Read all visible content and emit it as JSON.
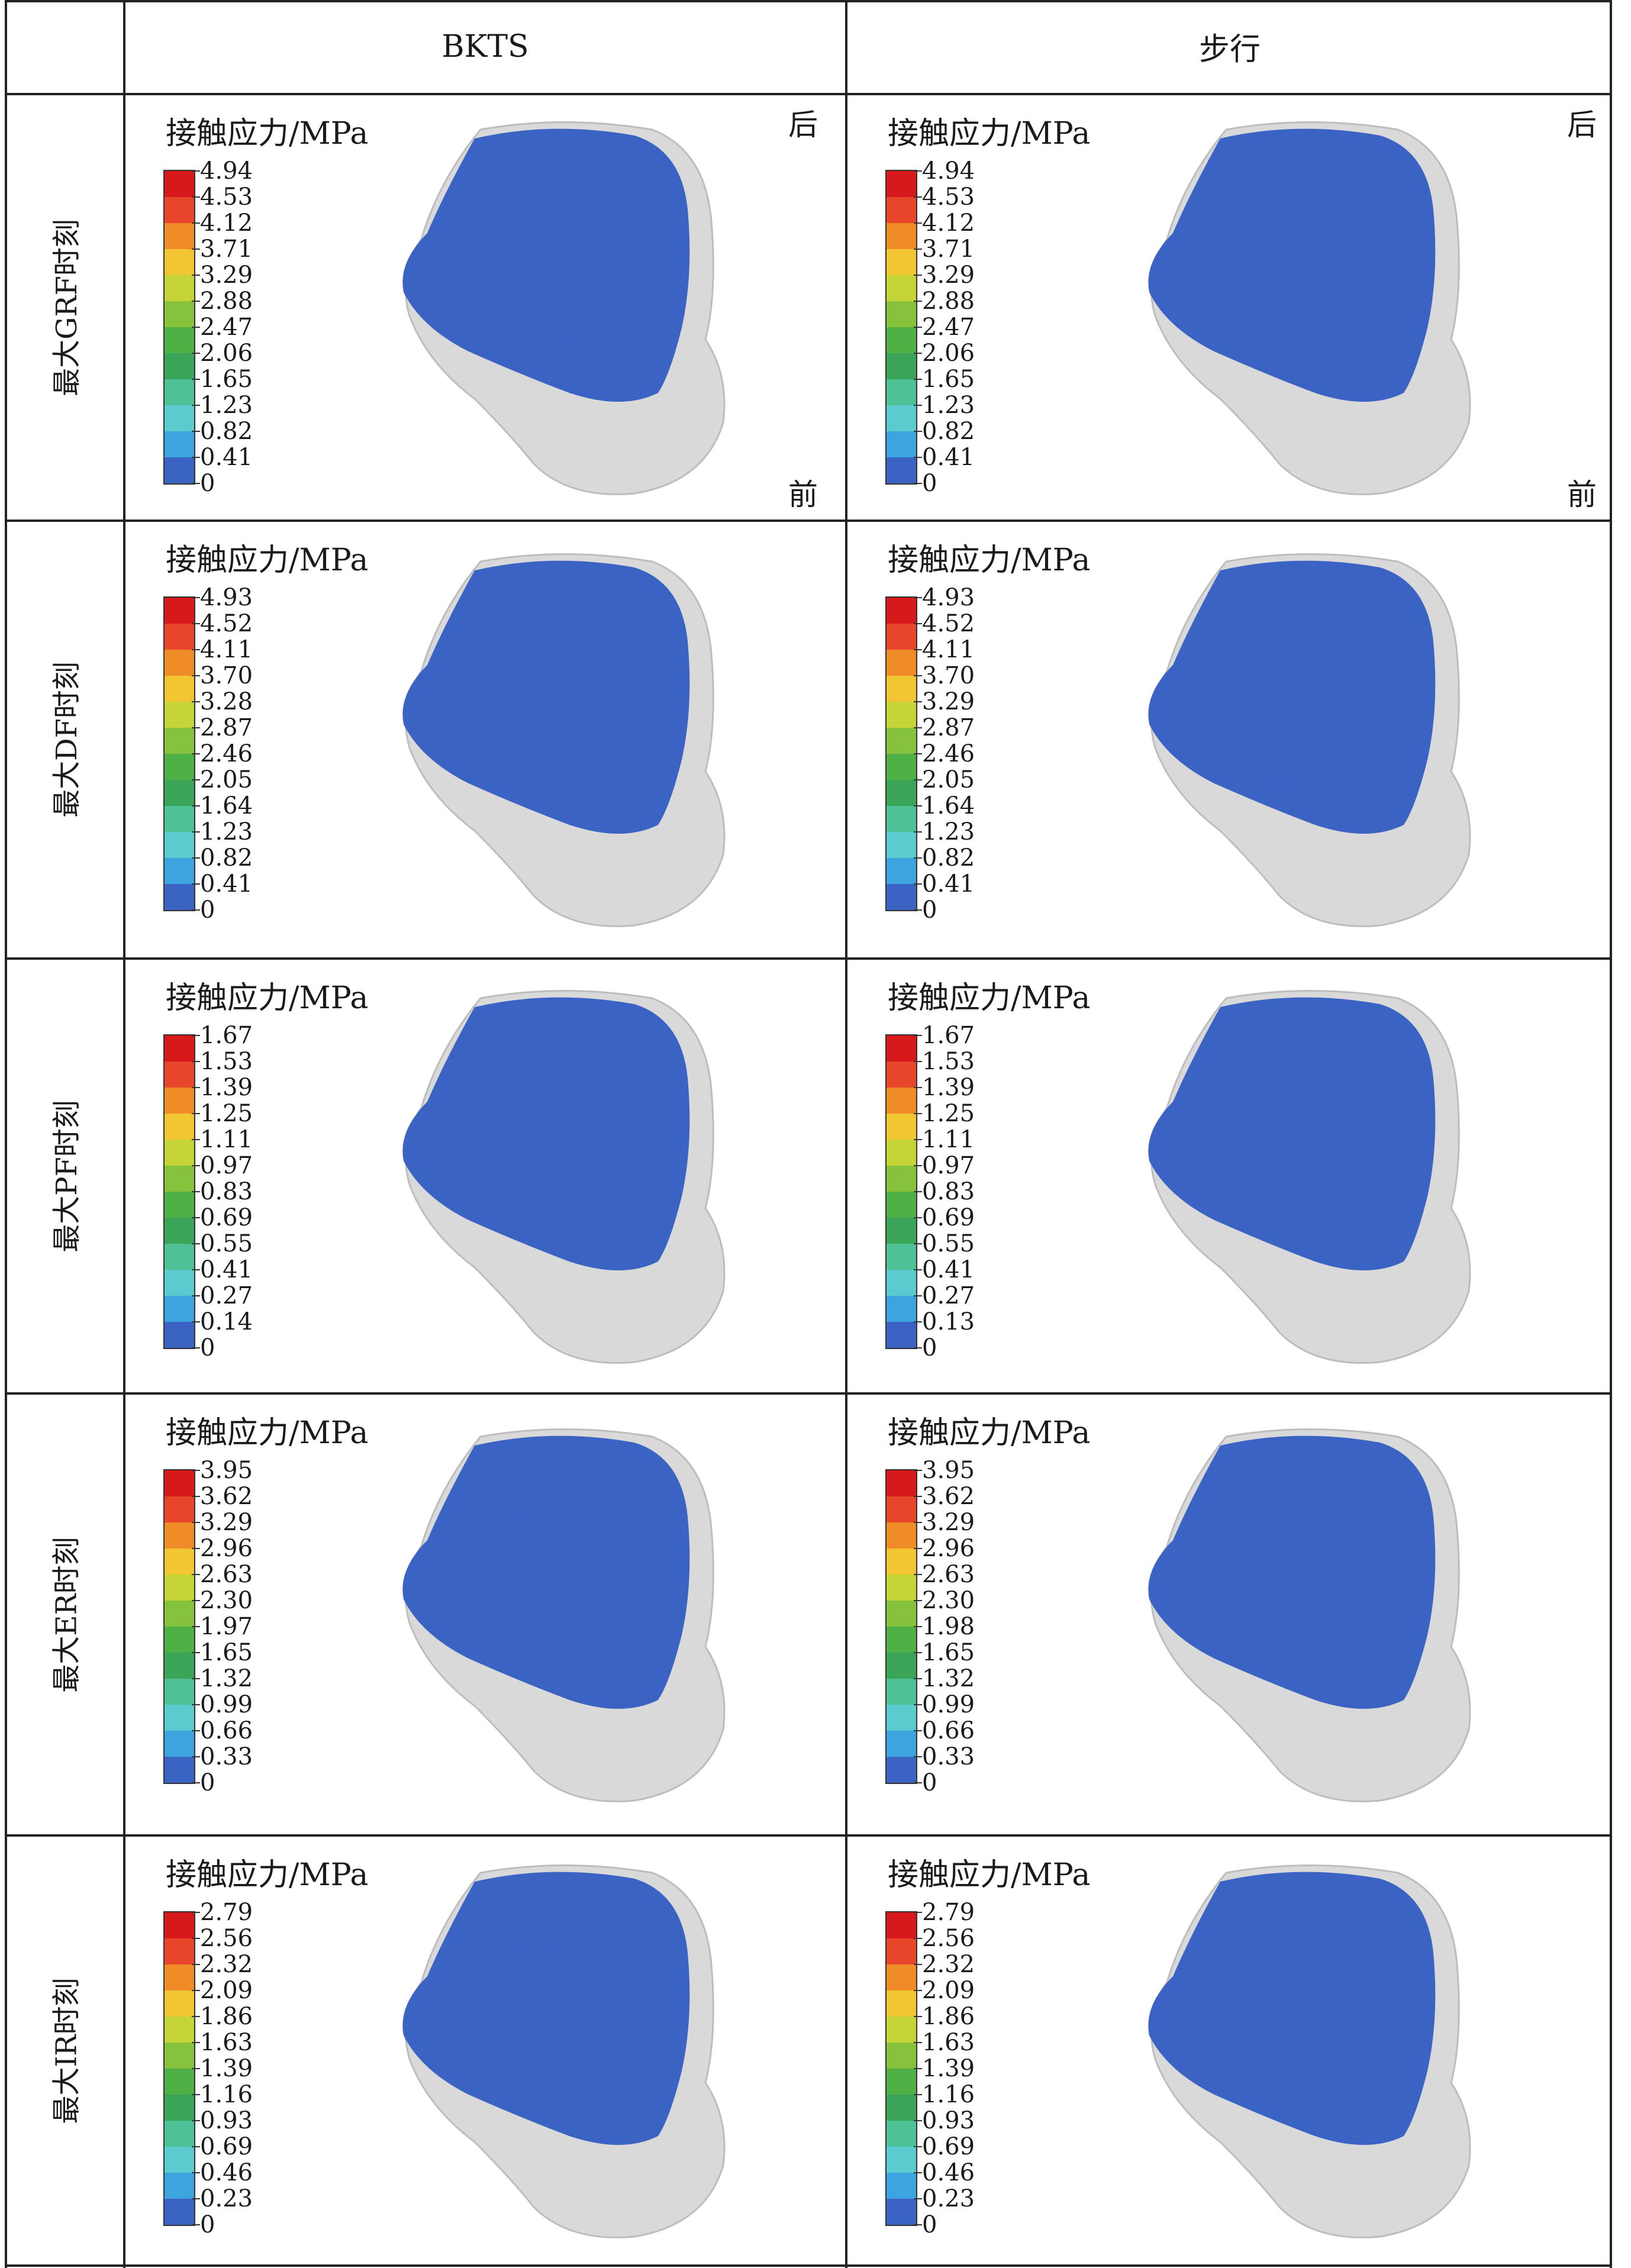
{
  "table": {
    "columns": [
      "BKTS",
      "步行"
    ],
    "rows": [
      {
        "label": "最大GRF时刻",
        "bkts": {
          "title": "接触应力/MPa",
          "ticks": [
            "4.94",
            "4.53",
            "4.12",
            "3.71",
            "3.29",
            "2.88",
            "2.47",
            "2.06",
            "1.65",
            "1.23",
            "0.82",
            "0.41",
            "0"
          ],
          "back": "后",
          "front": "前"
        },
        "walk": {
          "title": "接触应力/MPa",
          "ticks": [
            "4.94",
            "4.53",
            "4.12",
            "3.71",
            "3.29",
            "2.88",
            "2.47",
            "2.06",
            "1.65",
            "1.23",
            "0.82",
            "0.41",
            "0"
          ],
          "back": "后",
          "front": "前"
        }
      },
      {
        "label": "最大DF时刻",
        "bkts": {
          "title": "接触应力/MPa",
          "ticks": [
            "4.93",
            "4.52",
            "4.11",
            "3.70",
            "3.28",
            "2.87",
            "2.46",
            "2.05",
            "1.64",
            "1.23",
            "0.82",
            "0.41",
            "0"
          ]
        },
        "walk": {
          "title": "接触应力/MPa",
          "ticks": [
            "4.93",
            "4.52",
            "4.11",
            "3.70",
            "3.29",
            "2.87",
            "2.46",
            "2.05",
            "1.64",
            "1.23",
            "0.82",
            "0.41",
            "0"
          ]
        }
      },
      {
        "label": "最大PF时刻",
        "bkts": {
          "title": "接触应力/MPa",
          "ticks": [
            "1.67",
            "1.53",
            "1.39",
            "1.25",
            "1.11",
            "0.97",
            "0.83",
            "0.69",
            "0.55",
            "0.41",
            "0.27",
            "0.14",
            "0"
          ]
        },
        "walk": {
          "title": "接触应力/MPa",
          "ticks": [
            "1.67",
            "1.53",
            "1.39",
            "1.25",
            "1.11",
            "0.97",
            "0.83",
            "0.69",
            "0.55",
            "0.41",
            "0.27",
            "0.13",
            "0"
          ]
        }
      },
      {
        "label": "最大ER时刻",
        "bkts": {
          "title": "接触应力/MPa",
          "ticks": [
            "3.95",
            "3.62",
            "3.29",
            "2.96",
            "2.63",
            "2.30",
            "1.97",
            "1.65",
            "1.32",
            "0.99",
            "0.66",
            "0.33",
            "0"
          ]
        },
        "walk": {
          "title": "接触应力/MPa",
          "ticks": [
            "3.95",
            "3.62",
            "3.29",
            "2.96",
            "2.63",
            "2.30",
            "1.98",
            "1.65",
            "1.32",
            "0.99",
            "0.66",
            "0.33",
            "0"
          ]
        }
      },
      {
        "label": "最大IR时刻",
        "bkts": {
          "title": "接触应力/MPa",
          "ticks": [
            "2.79",
            "2.56",
            "2.32",
            "2.09",
            "1.86",
            "1.63",
            "1.39",
            "1.16",
            "0.93",
            "0.69",
            "0.46",
            "0.23",
            "0"
          ]
        },
        "walk": {
          "title": "接触应力/MPa",
          "ticks": [
            "2.79",
            "2.56",
            "2.32",
            "2.09",
            "1.86",
            "1.63",
            "1.39",
            "1.16",
            "0.93",
            "0.69",
            "0.46",
            "0.23",
            "0"
          ]
        }
      }
    ]
  },
  "colors": {
    "scale": [
      "#d7191c",
      "#e8462a",
      "#f08c28",
      "#f2c533",
      "#c5d436",
      "#86c23b",
      "#4fb045",
      "#3aa559",
      "#4fc196",
      "#5ccbd0",
      "#3ea4df",
      "#3b63c4",
      "#2c3fa8"
    ],
    "bone": "#d9d9d9"
  }
}
